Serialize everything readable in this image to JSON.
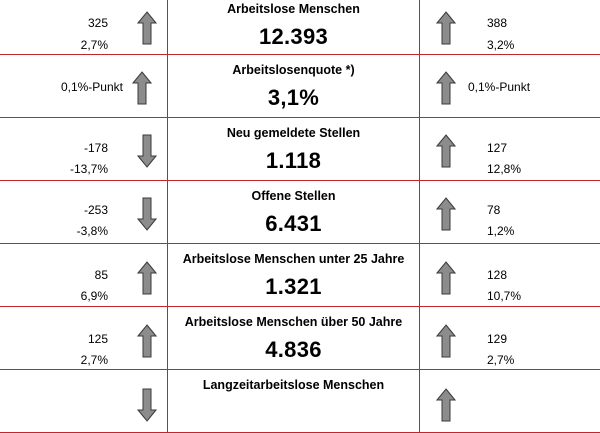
{
  "rows": [
    {
      "title": "Arbeitslose Menschen",
      "value": "12.393",
      "left": {
        "v1": "325",
        "v2": "2,7%"
      },
      "left_dir": "up",
      "right": {
        "v1": "388",
        "v2": "3,2%"
      },
      "right_dir": "up"
    },
    {
      "title": "Arbeitslosenquote *)",
      "value": "3,1%",
      "left": {
        "v1": "0,1%-Punkt",
        "v2": ""
      },
      "left_dir": "up",
      "right": {
        "v1": "0,1%-Punkt",
        "v2": ""
      },
      "right_dir": "up"
    },
    {
      "title": "Neu gemeldete Stellen",
      "value": "1.118",
      "left": {
        "v1": "-178",
        "v2": "-13,7%"
      },
      "left_dir": "down",
      "right": {
        "v1": "127",
        "v2": "12,8%"
      },
      "right_dir": "up"
    },
    {
      "title": "Offene Stellen",
      "value": "6.431",
      "left": {
        "v1": "-253",
        "v2": "-3,8%"
      },
      "left_dir": "down",
      "right": {
        "v1": "78",
        "v2": "1,2%"
      },
      "right_dir": "up"
    },
    {
      "title": "Arbeitslose Menschen unter 25 Jahre",
      "value": "1.321",
      "left": {
        "v1": "85",
        "v2": "6,9%"
      },
      "left_dir": "up",
      "right": {
        "v1": "128",
        "v2": "10,7%"
      },
      "right_dir": "up"
    },
    {
      "title": "Arbeitslose Menschen über 50 Jahre",
      "value": "4.836",
      "left": {
        "v1": "125",
        "v2": "2,7%"
      },
      "left_dir": "up",
      "right": {
        "v1": "129",
        "v2": "2,7%"
      },
      "right_dir": "up"
    },
    {
      "title": "Langzeitarbeitslose Menschen",
      "value": "",
      "left": {
        "v1": "",
        "v2": ""
      },
      "left_dir": "down",
      "right": {
        "v1": "",
        "v2": ""
      },
      "right_dir": "up"
    }
  ],
  "colors": {
    "border": "#c0262c",
    "arrow_fill": "#8c8c8c",
    "arrow_stroke": "#3a3a3a"
  },
  "icons": {
    "up": "arrow-up-icon",
    "down": "arrow-down-icon"
  }
}
